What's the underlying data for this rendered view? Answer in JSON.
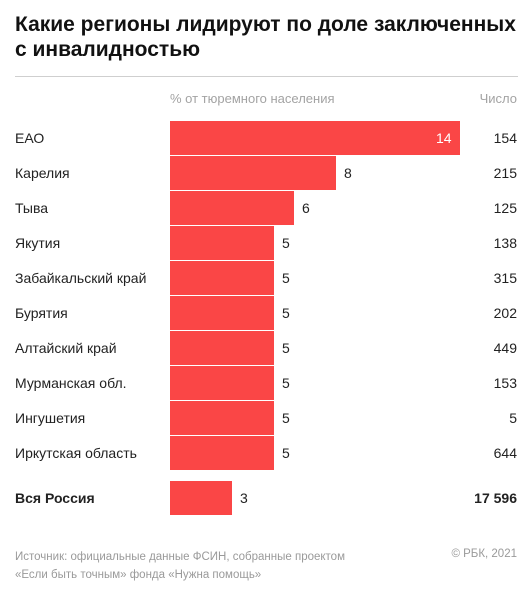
{
  "title": "Какие регионы лидируют по доле заключенных с инвалидностью",
  "col_pct_header": "% от тюремного населения",
  "col_count_header": "Число",
  "chart_data": {
    "type": "bar",
    "orientation": "horizontal",
    "title": "Какие регионы лидируют по доле заключенных с инвалидностью",
    "categories": [
      "ЕАО",
      "Карелия",
      "Тыва",
      "Якутия",
      "Забайкальский край",
      "Бурятия",
      "Алтайский край",
      "Мурманская обл.",
      "Ингушетия",
      "Иркутская область",
      "Вся Россия"
    ],
    "series": [
      {
        "name": "% от тюремного населения",
        "values": [
          14,
          8,
          6,
          5,
          5,
          5,
          5,
          5,
          5,
          5,
          3
        ]
      },
      {
        "name": "Число",
        "values": [
          "154",
          "215",
          "125",
          "138",
          "315",
          "202",
          "449",
          "153",
          "5",
          "644",
          "17 596"
        ]
      }
    ],
    "xlim": [
      0,
      14
    ],
    "grid": false,
    "legend": "none",
    "bar_color": "#fa4646"
  },
  "footer": {
    "line1": "Источник:  официальные данные ФСИН, собранные проектом",
    "line2": "«Если быть точным» фонда «Нужна помощь»",
    "copyright": "© РБК, 2021"
  }
}
